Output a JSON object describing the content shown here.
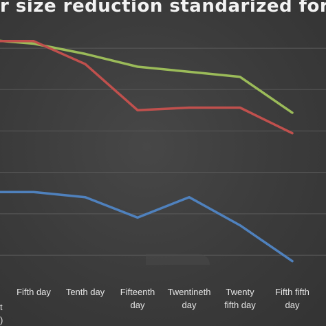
{
  "chart_data": {
    "type": "line",
    "title": "cer size reduction standarized for tim",
    "ylabel_fragments": [
      "t",
      ")"
    ],
    "categories": [
      "",
      "Fifth day",
      "Tenth day",
      "Fifteenth day",
      "Twentineth day",
      "Twenty fifth day",
      "Fifth fifth day"
    ],
    "ylim": [
      0,
      1
    ],
    "grid": true,
    "series": [
      {
        "color": "#9bbb59",
        "values": [
          0.93,
          0.91,
          0.87,
          0.82,
          0.8,
          0.78,
          0.64
        ]
      },
      {
        "color": "#c0504d",
        "values": [
          0.92,
          0.92,
          0.83,
          0.65,
          0.66,
          0.66,
          0.56
        ]
      },
      {
        "color": "#4f81bd",
        "values": [
          0.33,
          0.33,
          0.31,
          0.23,
          0.31,
          0.2,
          0.06
        ]
      }
    ]
  }
}
